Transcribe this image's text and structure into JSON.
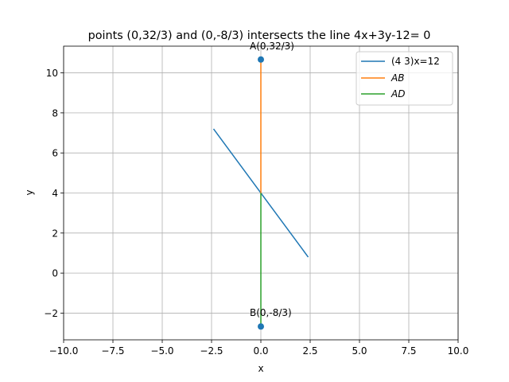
{
  "chart_data": {
    "type": "line",
    "title": "points (0,32/3) and (0,-8/3) intersects the line 4x+3y-12= 0",
    "xlabel": "x",
    "ylabel": "y",
    "xlim": [
      -10,
      10
    ],
    "ylim": [
      -3.333,
      11.333
    ],
    "x_ticks": [
      -10,
      -7.5,
      -5,
      -2.5,
      0,
      2.5,
      5,
      7.5,
      10
    ],
    "x_tick_labels": [
      "−10.0",
      "−7.5",
      "−5.0",
      "−2.5",
      "0.0",
      "2.5",
      "5.0",
      "7.5",
      "10.0"
    ],
    "y_ticks": [
      -2,
      0,
      2,
      4,
      6,
      8,
      10
    ],
    "y_tick_labels": [
      "−2",
      "0",
      "2",
      "4",
      "6",
      "8",
      "10"
    ],
    "grid": true,
    "legend_position": "top-right",
    "series": [
      {
        "name": "(4 3)x=12",
        "color": "#1f77b4",
        "x": [
          -2.4,
          2.4
        ],
        "y": [
          7.2,
          0.8
        ]
      },
      {
        "name": "AB",
        "color": "#ff7f0e",
        "x": [
          0,
          0
        ],
        "y": [
          10.667,
          4
        ]
      },
      {
        "name": "AD",
        "color": "#2ca02c",
        "x": [
          0,
          0
        ],
        "y": [
          4,
          -2.667
        ]
      }
    ],
    "points": [
      {
        "label": "A(0,32/3)",
        "x": 0,
        "y": 10.667,
        "color": "#1f77b4"
      },
      {
        "label": "B(0,-8/3)",
        "x": 0,
        "y": -2.667,
        "color": "#1f77b4"
      }
    ]
  }
}
